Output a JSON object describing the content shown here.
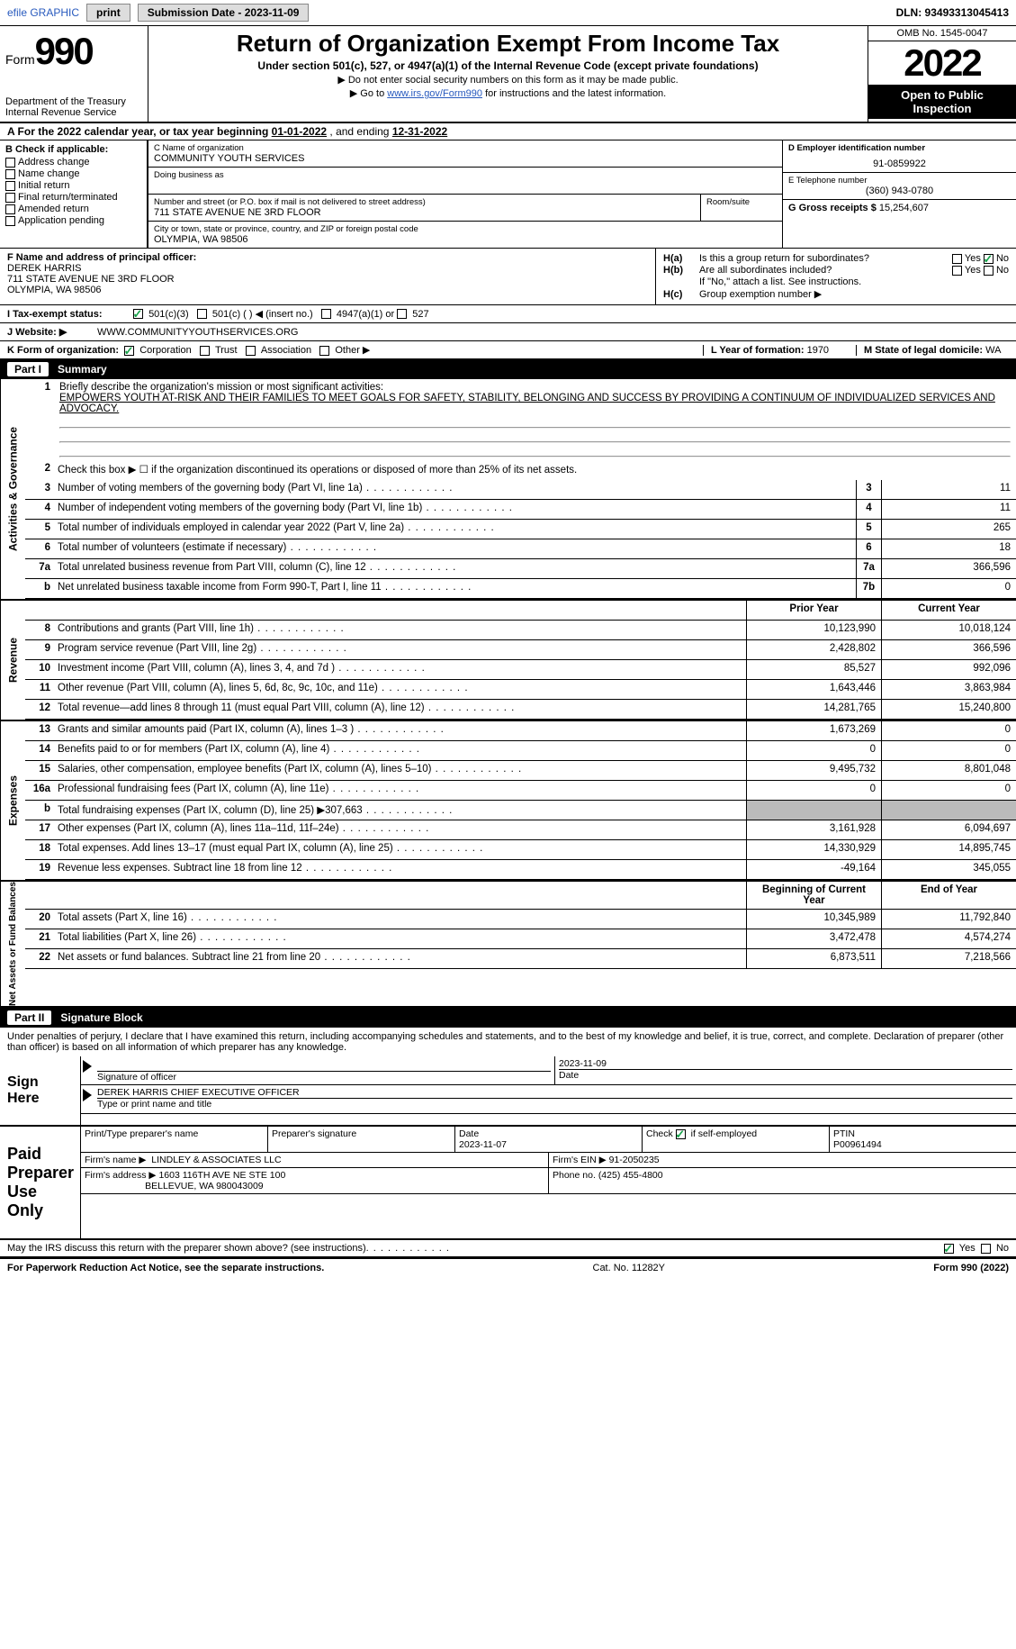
{
  "colors": {
    "link": "#285abe",
    "check": "#16a34a",
    "black": "#000000",
    "grey_fill": "#bbbbbb"
  },
  "topbar": {
    "efile": "efile GRAPHIC",
    "print": "print",
    "subdate_lbl": "Submission Date - 2023-11-09",
    "dln": "DLN: 93493313045413"
  },
  "header": {
    "form": "Form",
    "num": "990",
    "dept": "Department of the Treasury",
    "irs": "Internal Revenue Service",
    "title": "Return of Organization Exempt From Income Tax",
    "sub": "Under section 501(c), 527, or 4947(a)(1) of the Internal Revenue Code (except private foundations)",
    "note1": "▶ Do not enter social security numbers on this form as it may be made public.",
    "note2_pre": "▶ Go to ",
    "note2_link": "www.irs.gov/Form990",
    "note2_post": " for instructions and the latest information.",
    "omb": "OMB No. 1545-0047",
    "year": "2022",
    "open": "Open to Public Inspection"
  },
  "rowA": {
    "text_a": "A For the 2022 calendar year, or tax year beginning ",
    "begin": "01-01-2022",
    "mid": "  , and ending ",
    "end": "12-31-2022"
  },
  "b": {
    "lbl": "B Check if applicable:",
    "opts": [
      "Address change",
      "Name change",
      "Initial return",
      "Final return/terminated",
      "Amended return",
      "Application pending"
    ]
  },
  "c": {
    "name_lbl": "C Name of organization",
    "name": "COMMUNITY YOUTH SERVICES",
    "dba_lbl": "Doing business as",
    "street_lbl": "Number and street (or P.O. box if mail is not delivered to street address)",
    "room_lbl": "Room/suite",
    "street": "711 STATE AVENUE NE 3RD FLOOR",
    "city_lbl": "City or town, state or province, country, and ZIP or foreign postal code",
    "city": "OLYMPIA, WA  98506"
  },
  "d": {
    "lbl": "D Employer identification number",
    "val": "91-0859922"
  },
  "e": {
    "lbl": "E Telephone number",
    "val": "(360) 943-0780"
  },
  "g": {
    "lbl": "G Gross receipts $",
    "val": "15,254,607"
  },
  "f": {
    "lbl": "F Name and address of principal officer:",
    "name": "DEREK HARRIS",
    "street": "711 STATE AVENUE NE 3RD FLOOR",
    "city": "OLYMPIA, WA  98506"
  },
  "h": {
    "a_lbl": "Is this a group return for subordinates?",
    "a_yes": "Yes",
    "a_no": "No",
    "b_lbl": "Are all subordinates included?",
    "b_note": "If \"No,\" attach a list. See instructions.",
    "c_lbl": "Group exemption number ▶"
  },
  "i": {
    "lbl": "I   Tax-exempt status:",
    "o1": "501(c)(3)",
    "o2": "501(c) (  ) ◀ (insert no.)",
    "o3": "4947(a)(1) or",
    "o4": "527"
  },
  "j": {
    "lbl": "J   Website: ▶",
    "val": "WWW.COMMUNITYYOUTHSERVICES.ORG"
  },
  "k": {
    "lbl": "K Form of organization:",
    "o1": "Corporation",
    "o2": "Trust",
    "o3": "Association",
    "o4": "Other ▶"
  },
  "l": {
    "lbl": "L Year of formation:",
    "val": "1970"
  },
  "m": {
    "lbl": "M State of legal domicile:",
    "val": "WA"
  },
  "part1": {
    "num": "Part I",
    "title": "Summary"
  },
  "mission": {
    "lbl": "Briefly describe the organization's mission or most significant activities:",
    "text": "EMPOWERS YOUTH AT-RISK AND THEIR FAMILIES TO MEET GOALS FOR SAFETY, STABILITY, BELONGING AND SUCCESS BY PROVIDING A CONTINUUM OF INDIVIDUALIZED SERVICES AND ADVOCACY."
  },
  "lines_single": [
    {
      "n": "2",
      "t": "Check this box ▶ ☐ if the organization discontinued its operations or disposed of more than 25% of its net assets."
    }
  ],
  "lines_boxed": [
    {
      "n": "3",
      "t": "Number of voting members of the governing body (Part VI, line 1a)",
      "box": "3",
      "v": "11"
    },
    {
      "n": "4",
      "t": "Number of independent voting members of the governing body (Part VI, line 1b)",
      "box": "4",
      "v": "11"
    },
    {
      "n": "5",
      "t": "Total number of individuals employed in calendar year 2022 (Part V, line 2a)",
      "box": "5",
      "v": "265"
    },
    {
      "n": "6",
      "t": "Total number of volunteers (estimate if necessary)",
      "box": "6",
      "v": "18"
    },
    {
      "n": "7a",
      "t": "Total unrelated business revenue from Part VIII, column (C), line 12",
      "box": "7a",
      "v": "366,596"
    },
    {
      "n": "b",
      "t": "Net unrelated business taxable income from Form 990-T, Part I, line 11",
      "box": "7b",
      "v": "0"
    }
  ],
  "colhdr": {
    "prior": "Prior Year",
    "current": "Current Year",
    "begin": "Beginning of Current Year",
    "end": "End of Year"
  },
  "revenue": [
    {
      "n": "8",
      "t": "Contributions and grants (Part VIII, line 1h)",
      "v1": "10,123,990",
      "v2": "10,018,124"
    },
    {
      "n": "9",
      "t": "Program service revenue (Part VIII, line 2g)",
      "v1": "2,428,802",
      "v2": "366,596"
    },
    {
      "n": "10",
      "t": "Investment income (Part VIII, column (A), lines 3, 4, and 7d )",
      "v1": "85,527",
      "v2": "992,096"
    },
    {
      "n": "11",
      "t": "Other revenue (Part VIII, column (A), lines 5, 6d, 8c, 9c, 10c, and 11e)",
      "v1": "1,643,446",
      "v2": "3,863,984"
    },
    {
      "n": "12",
      "t": "Total revenue—add lines 8 through 11 (must equal Part VIII, column (A), line 12)",
      "v1": "14,281,765",
      "v2": "15,240,800"
    }
  ],
  "expenses": [
    {
      "n": "13",
      "t": "Grants and similar amounts paid (Part IX, column (A), lines 1–3 )",
      "v1": "1,673,269",
      "v2": "0"
    },
    {
      "n": "14",
      "t": "Benefits paid to or for members (Part IX, column (A), line 4)",
      "v1": "0",
      "v2": "0"
    },
    {
      "n": "15",
      "t": "Salaries, other compensation, employee benefits (Part IX, column (A), lines 5–10)",
      "v1": "9,495,732",
      "v2": "8,801,048"
    },
    {
      "n": "16a",
      "t": "Professional fundraising fees (Part IX, column (A), line 11e)",
      "v1": "0",
      "v2": "0"
    },
    {
      "n": "b",
      "t": "Total fundraising expenses (Part IX, column (D), line 25) ▶307,663",
      "v1": "",
      "v2": "",
      "grey": true
    },
    {
      "n": "17",
      "t": "Other expenses (Part IX, column (A), lines 11a–11d, 11f–24e)",
      "v1": "3,161,928",
      "v2": "6,094,697"
    },
    {
      "n": "18",
      "t": "Total expenses. Add lines 13–17 (must equal Part IX, column (A), line 25)",
      "v1": "14,330,929",
      "v2": "14,895,745"
    },
    {
      "n": "19",
      "t": "Revenue less expenses. Subtract line 18 from line 12",
      "v1": "-49,164",
      "v2": "345,055"
    }
  ],
  "netassets": [
    {
      "n": "20",
      "t": "Total assets (Part X, line 16)",
      "v1": "10,345,989",
      "v2": "11,792,840"
    },
    {
      "n": "21",
      "t": "Total liabilities (Part X, line 26)",
      "v1": "3,472,478",
      "v2": "4,574,274"
    },
    {
      "n": "22",
      "t": "Net assets or fund balances. Subtract line 21 from line 20",
      "v1": "6,873,511",
      "v2": "7,218,566"
    }
  ],
  "vtabs": {
    "act": "Activities & Governance",
    "rev": "Revenue",
    "exp": "Expenses",
    "net": "Net Assets or Fund Balances"
  },
  "part2": {
    "num": "Part II",
    "title": "Signature Block"
  },
  "sig": {
    "perjury": "Under penalties of perjury, I declare that I have examined this return, including accompanying schedules and statements, and to the best of my knowledge and belief, it is true, correct, and complete. Declaration of preparer (other than officer) is based on all information of which preparer has any knowledge.",
    "here": "Sign Here",
    "officer_sig": "Signature of officer",
    "date": "Date",
    "sig_date": "2023-11-09",
    "officer_name": "DEREK HARRIS  CHIEF EXECUTIVE OFFICER",
    "type_name": "Type or print name and title"
  },
  "paid": {
    "title": "Paid Preparer Use Only",
    "pn_lbl": "Print/Type preparer's name",
    "ps_lbl": "Preparer's signature",
    "pd_lbl": "Date",
    "pd": "2023-11-07",
    "chk_lbl": "Check ☑ if self-employed",
    "ptin_lbl": "PTIN",
    "ptin": "P00961494",
    "firm_lbl": "Firm's name   ▶",
    "firm": "LINDLEY & ASSOCIATES LLC",
    "ein_lbl": "Firm's EIN ▶",
    "ein": "91-2050235",
    "addr_lbl": "Firm's address ▶",
    "addr1": "1603 116TH AVE NE STE 100",
    "addr2": "BELLEVUE, WA  980043009",
    "ph_lbl": "Phone no.",
    "ph": "(425) 455-4800"
  },
  "discuss": {
    "q": "May the IRS discuss this return with the preparer shown above? (see instructions)",
    "yes": "Yes",
    "no": "No"
  },
  "footer": {
    "l": "For Paperwork Reduction Act Notice, see the separate instructions.",
    "c": "Cat. No. 11282Y",
    "r": "Form 990 (2022)"
  }
}
